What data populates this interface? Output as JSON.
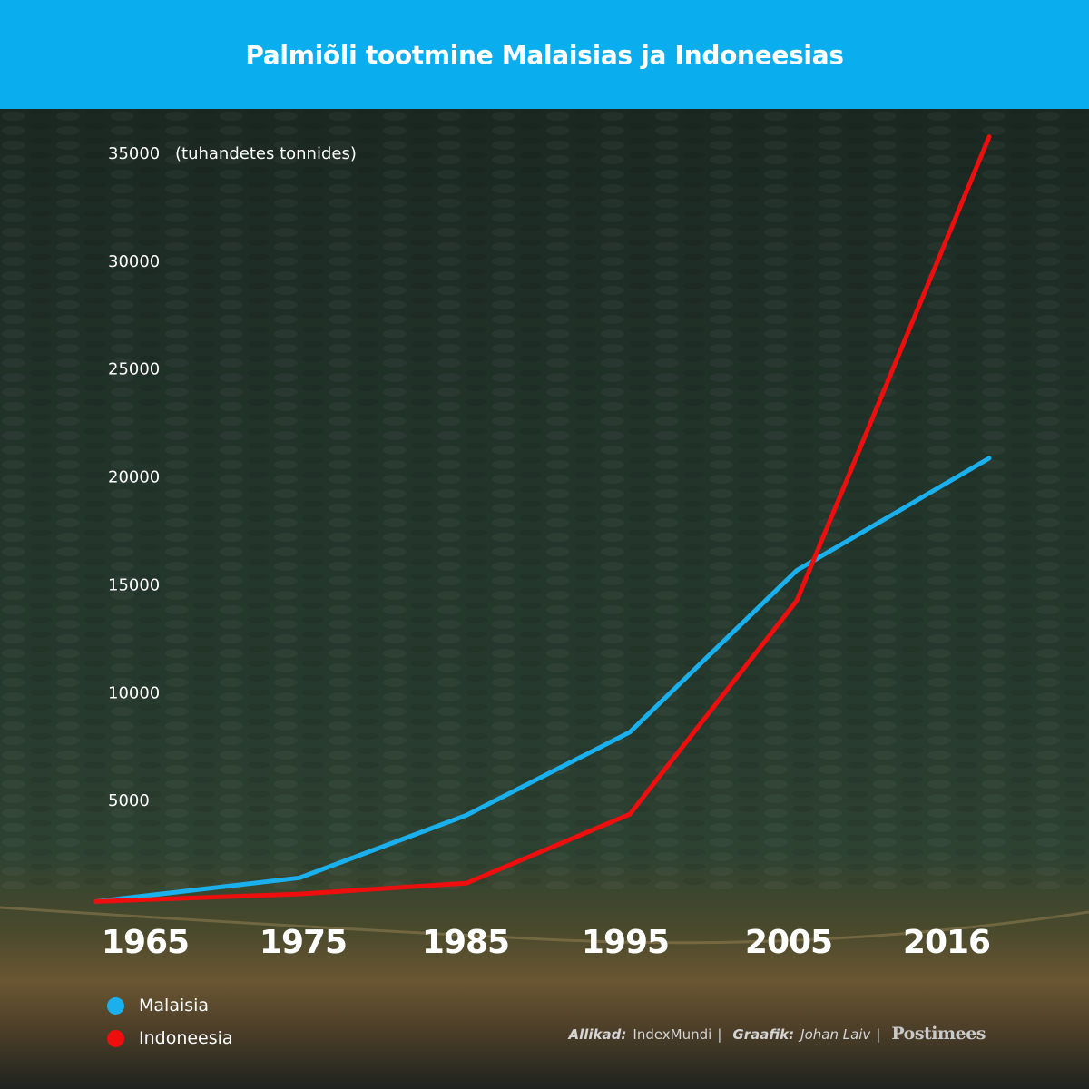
{
  "header": {
    "title": "Palmiõli tootmine Malaisias ja Indoneesias"
  },
  "colors": {
    "header_bg": "#0aaeef",
    "malaisia": "#1ab0ee",
    "indoneesia": "#ee0e0e"
  },
  "chart_data": {
    "type": "line",
    "title": "Palmiõli tootmine Malaisias ja Indoneesias",
    "ylabel": "(tuhandetes tonnides)",
    "x": [
      1965,
      1975,
      1985,
      1995,
      2005,
      2016
    ],
    "x_tick_labels": [
      "1965",
      "1975",
      "1985",
      "1995",
      "2005",
      "2016"
    ],
    "y_ticks": [
      5000,
      10000,
      15000,
      20000,
      25000,
      30000,
      35000
    ],
    "y_tick_labels": [
      "5000",
      "10000",
      "15000",
      "20000",
      "25000",
      "30000",
      "35000"
    ],
    "ylim": [
      0,
      35000
    ],
    "grid": false,
    "legend_position": "bottom-left",
    "series": [
      {
        "name": "Malaisia",
        "color": "#1ab0ee",
        "values": [
          150,
          1250,
          4150,
          8000,
          15500,
          20700
        ]
      },
      {
        "name": "Indoneesia",
        "color": "#ee0e0e",
        "values": [
          150,
          500,
          1000,
          4200,
          14100,
          35600
        ]
      }
    ]
  },
  "legend": {
    "items": [
      {
        "label": "Malaisia"
      },
      {
        "label": "Indoneesia"
      }
    ]
  },
  "credits": {
    "sources_key": "Allikad:",
    "sources_value": "IndexMundi",
    "separator": "|",
    "graphic_key": "Graafik:",
    "graphic_value": "Johan Laiv",
    "logo_text": "Postimees"
  }
}
